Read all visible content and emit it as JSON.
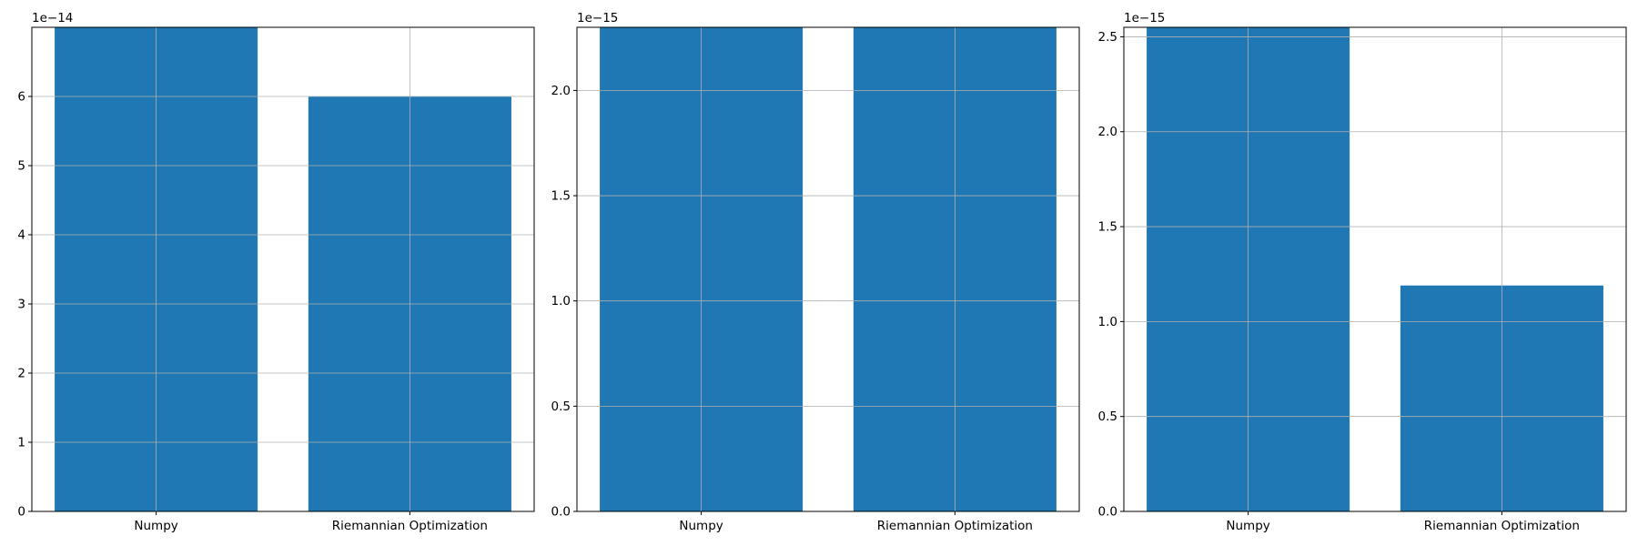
{
  "chart_data": [
    {
      "type": "bar",
      "categories": [
        "Numpy",
        "Riemannian Optimization"
      ],
      "values": [
        7.0,
        6.0
      ],
      "scale_label": "1e−14",
      "ylim": [
        0,
        7.0
      ],
      "yticks": [
        0,
        1,
        2,
        3,
        4,
        5,
        6
      ],
      "ytick_labels": [
        "0",
        "1",
        "2",
        "3",
        "4",
        "5",
        "6"
      ],
      "grid": true,
      "color": "#1f77b4"
    },
    {
      "type": "bar",
      "categories": [
        "Numpy",
        "Riemannian Optimization"
      ],
      "values": [
        2.3,
        2.3
      ],
      "scale_label": "1e−15",
      "ylim": [
        0,
        2.3
      ],
      "yticks": [
        0.0,
        0.5,
        1.0,
        1.5,
        2.0
      ],
      "ytick_labels": [
        "0.0",
        "0.5",
        "1.0",
        "1.5",
        "2.0"
      ],
      "grid": true,
      "color": "#1f77b4"
    },
    {
      "type": "bar",
      "categories": [
        "Numpy",
        "Riemannian Optimization"
      ],
      "values": [
        2.55,
        1.19
      ],
      "scale_label": "1e−15",
      "ylim": [
        0,
        2.55
      ],
      "yticks": [
        0.0,
        0.5,
        1.0,
        1.5,
        2.0,
        2.5
      ],
      "ytick_labels": [
        "0.0",
        "0.5",
        "1.0",
        "1.5",
        "2.0",
        "2.5"
      ],
      "grid": true,
      "color": "#1f77b4"
    }
  ]
}
